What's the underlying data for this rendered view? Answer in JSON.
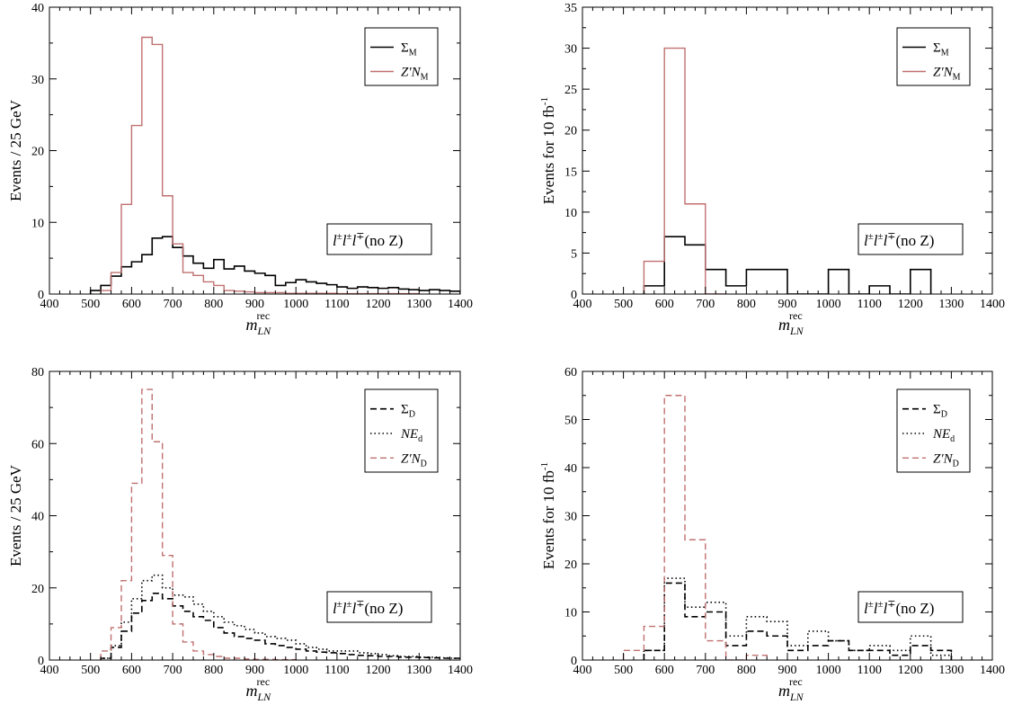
{
  "chart_data": [
    {
      "type": "histogram",
      "xlabel": "m",
      "xlabel_sub": "LN",
      "xlabel_sup": "rec",
      "ylabel": "Events / 25 GeV",
      "xlim": [
        400,
        1400
      ],
      "ylim": [
        0,
        40
      ],
      "yticks": [
        0,
        10,
        20,
        30,
        40
      ],
      "xticks": [
        400,
        500,
        600,
        700,
        800,
        900,
        1000,
        1100,
        1200,
        1300,
        1400
      ],
      "legend_position": "top-right",
      "annotation": {
        "text": "l±l±l∓(no Z)"
      },
      "series": [
        {
          "name": "Σ_M",
          "label_main": "Σ",
          "label_sub": "M",
          "style": "solid",
          "color": "#000000",
          "edges": [
            500,
            525,
            550,
            575,
            600,
            625,
            650,
            675,
            700,
            725,
            750,
            775,
            800,
            825,
            850,
            875,
            900,
            925,
            950,
            975,
            1000,
            1025,
            1050,
            1075,
            1100,
            1125,
            1150,
            1175,
            1200,
            1225,
            1250,
            1275,
            1300,
            1325,
            1350,
            1375,
            1400
          ],
          "values": [
            0.5,
            1.2,
            2.5,
            3.8,
            4.5,
            5.5,
            7.8,
            8.0,
            6.5,
            5.3,
            4.3,
            3.6,
            4.8,
            3.5,
            3.9,
            3.2,
            2.9,
            2.6,
            1.2,
            1.6,
            2.0,
            1.7,
            1.5,
            1.3,
            1.0,
            0.8,
            1.0,
            0.9,
            0.8,
            0.9,
            0.7,
            0.6,
            0.5,
            0.6,
            0.5,
            0.4
          ]
        },
        {
          "name": "Z′N_M",
          "label_main": "Z′N",
          "label_sub": "M",
          "style": "solid",
          "color": "#c07070",
          "edges": [
            525,
            550,
            575,
            600,
            625,
            650,
            675,
            700,
            725,
            750,
            775,
            800,
            825,
            850,
            875,
            900,
            925,
            950,
            975,
            1000,
            1025,
            1050,
            1075,
            1100,
            1125,
            1150,
            1175,
            1200,
            1225,
            1250,
            1275,
            1300
          ],
          "values": [
            0.5,
            3.0,
            12.5,
            23.5,
            35.8,
            34.8,
            13.7,
            7.0,
            3.0,
            2.6,
            1.7,
            1.2,
            0.5,
            0.4,
            0.3,
            0.2,
            0.2,
            0.2,
            0.1,
            0.1,
            0.1,
            0.1,
            0.1,
            0.05,
            0.05,
            0.05,
            0.05,
            0.05,
            0.05,
            0.05,
            0.05
          ]
        }
      ]
    },
    {
      "type": "histogram",
      "xlabel": "m",
      "xlabel_sub": "LN",
      "xlabel_sup": "rec",
      "ylabel": "Events for 10 fb",
      "ylabel_sup": "-1",
      "xlim": [
        400,
        1400
      ],
      "ylim": [
        0,
        35
      ],
      "yticks": [
        0,
        5,
        10,
        15,
        20,
        25,
        30,
        35
      ],
      "xticks": [
        400,
        500,
        600,
        700,
        800,
        900,
        1000,
        1100,
        1200,
        1300,
        1400
      ],
      "legend_position": "top-right",
      "annotation": {
        "text": "l±l±l∓(no Z)"
      },
      "series": [
        {
          "name": "Σ_M",
          "label_main": "Σ",
          "label_sub": "M",
          "style": "solid",
          "color": "#000000",
          "edges": [
            550,
            600,
            650,
            700,
            750,
            800,
            850,
            900,
            950,
            1000,
            1050,
            1100,
            1150,
            1200,
            1250
          ],
          "values": [
            1,
            7,
            6,
            3,
            1,
            3,
            3,
            0,
            0,
            3,
            0,
            1,
            0,
            3
          ]
        },
        {
          "name": "Z′N_M",
          "label_main": "Z′N",
          "label_sub": "M",
          "style": "solid",
          "color": "#c07070",
          "edges": [
            550,
            600,
            650,
            700,
            750
          ],
          "values": [
            4,
            30,
            11,
            0
          ]
        }
      ]
    },
    {
      "type": "histogram",
      "xlabel": "m",
      "xlabel_sub": "LN",
      "xlabel_sup": "rec",
      "ylabel": "Events / 25 GeV",
      "xlim": [
        400,
        1400
      ],
      "ylim": [
        0,
        80
      ],
      "yticks": [
        0,
        20,
        40,
        60,
        80
      ],
      "xticks": [
        400,
        500,
        600,
        700,
        800,
        900,
        1000,
        1100,
        1200,
        1300,
        1400
      ],
      "legend_position": "top-right",
      "annotation": {
        "text": "l±l±l∓(no Z)"
      },
      "series": [
        {
          "name": "Σ_D",
          "label_main": "Σ",
          "label_sub": "D",
          "style": "dashed",
          "color": "#000000",
          "edges": [
            525,
            550,
            575,
            600,
            625,
            650,
            675,
            700,
            725,
            750,
            775,
            800,
            825,
            850,
            875,
            900,
            925,
            950,
            975,
            1000,
            1025,
            1050,
            1075,
            1100,
            1125,
            1150,
            1175,
            1200,
            1225,
            1250,
            1275,
            1300,
            1325,
            1350,
            1375,
            1400
          ],
          "values": [
            0.5,
            3.5,
            8.0,
            13.0,
            16.5,
            18.5,
            17.0,
            15.0,
            13.5,
            12.0,
            11.0,
            9.0,
            7.5,
            6.5,
            6.0,
            5.5,
            4.5,
            4.0,
            3.5,
            3.0,
            2.5,
            2.2,
            2.0,
            1.8,
            1.5,
            1.3,
            1.2,
            1.0,
            1.0,
            0.8,
            0.8,
            0.7,
            0.6,
            0.5,
            0.5
          ]
        },
        {
          "name": "NE_d",
          "label_main": "NE",
          "label_sub": "d",
          "style": "dotted",
          "color": "#000000",
          "edges": [
            525,
            550,
            575,
            600,
            625,
            650,
            675,
            700,
            725,
            750,
            775,
            800,
            825,
            850,
            875,
            900,
            925,
            950,
            975,
            1000,
            1025,
            1050,
            1075,
            1100,
            1125,
            1150,
            1175,
            1200,
            1225,
            1250,
            1275,
            1300,
            1325,
            1350,
            1375,
            1400
          ],
          "values": [
            0.5,
            4.0,
            10.5,
            17.0,
            22.0,
            23.5,
            20.0,
            18.0,
            17.5,
            15.5,
            13.5,
            12.0,
            10.5,
            9.5,
            8.5,
            7.5,
            6.5,
            6.0,
            5.5,
            4.5,
            3.5,
            3.0,
            2.5,
            2.5,
            2.5,
            2.0,
            1.8,
            1.5,
            1.2,
            1.0,
            1.0,
            0.8,
            0.8,
            0.6,
            0.5
          ]
        },
        {
          "name": "Z′N_D",
          "label_main": "Z′N",
          "label_sub": "D",
          "style": "dashed",
          "color": "#c07070",
          "edges": [
            525,
            550,
            575,
            600,
            625,
            650,
            675,
            700,
            725,
            750,
            775,
            800,
            825,
            850,
            875,
            900,
            925,
            950,
            975,
            1000
          ],
          "values": [
            2.5,
            9.0,
            22.0,
            49.0,
            75.0,
            60.5,
            29.0,
            10.0,
            5.0,
            2.5,
            1.5,
            1.0,
            0.5,
            0.5,
            0.3,
            0.2,
            0.2,
            0.1,
            0.1
          ]
        }
      ]
    },
    {
      "type": "histogram",
      "xlabel": "m",
      "xlabel_sub": "LN",
      "xlabel_sup": "rec",
      "ylabel": "Events for 10 fb",
      "ylabel_sup": "-1",
      "xlim": [
        400,
        1400
      ],
      "ylim": [
        0,
        60
      ],
      "yticks": [
        0,
        10,
        20,
        30,
        40,
        50,
        60
      ],
      "xticks": [
        400,
        500,
        600,
        700,
        800,
        900,
        1000,
        1100,
        1200,
        1300,
        1400
      ],
      "legend_position": "top-right",
      "annotation": {
        "text": "l±l±l∓(no Z)"
      },
      "series": [
        {
          "name": "Σ_D",
          "label_main": "Σ",
          "label_sub": "D",
          "style": "dashed",
          "color": "#000000",
          "edges": [
            550,
            600,
            650,
            700,
            750,
            800,
            850,
            900,
            950,
            1000,
            1050,
            1100,
            1150,
            1200,
            1250,
            1300
          ],
          "values": [
            2,
            16,
            9,
            10,
            3,
            6,
            5,
            2,
            3,
            4,
            2,
            2,
            1,
            3,
            2
          ]
        },
        {
          "name": "NE_d",
          "label_main": "NE",
          "label_sub": "d",
          "style": "dotted",
          "color": "#000000",
          "edges": [
            550,
            600,
            650,
            700,
            750,
            800,
            850,
            900,
            950,
            1000,
            1050,
            1100,
            1150,
            1200,
            1250,
            1300
          ],
          "values": [
            2,
            17,
            11,
            12,
            5,
            9,
            8,
            3,
            6,
            4,
            2,
            3,
            2,
            5,
            1
          ]
        },
        {
          "name": "Z′N_D",
          "label_main": "Z′N",
          "label_sub": "D",
          "style": "dashed",
          "color": "#c07070",
          "edges": [
            500,
            550,
            600,
            650,
            700,
            750,
            800,
            850
          ],
          "values": [
            2,
            7,
            55,
            25,
            4,
            0,
            1
          ]
        }
      ]
    }
  ]
}
